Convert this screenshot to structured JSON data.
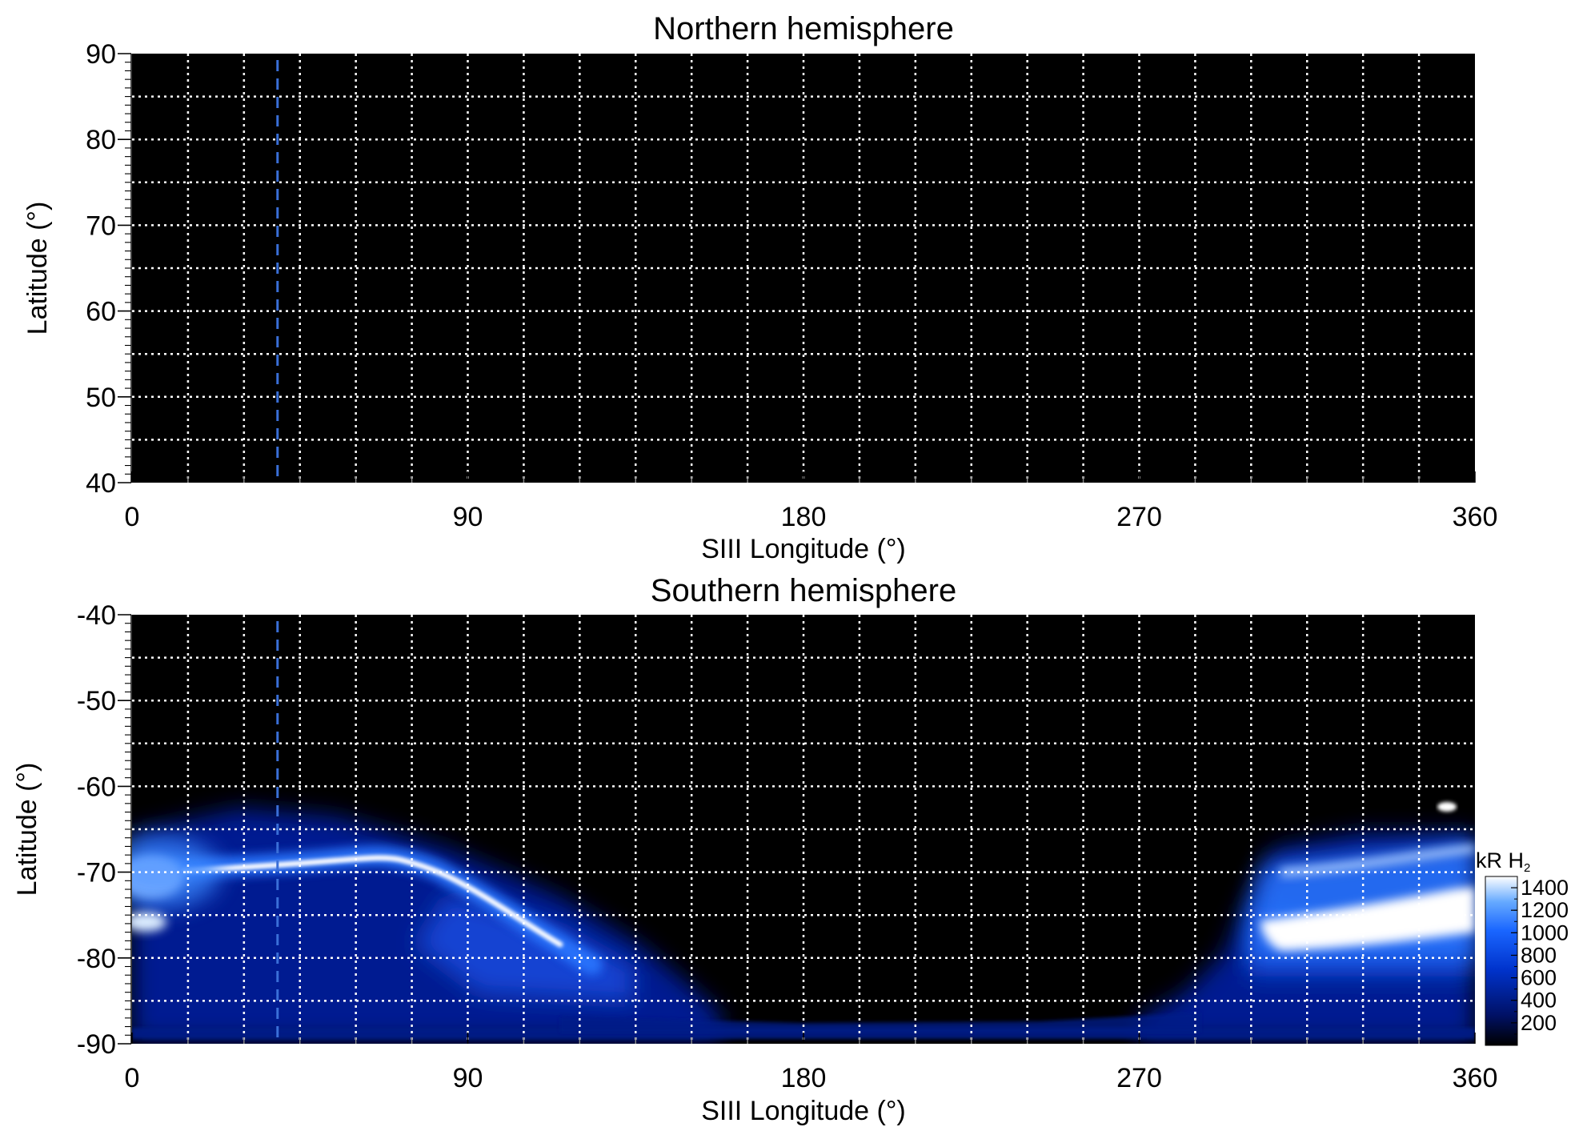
{
  "chart_data": [
    {
      "type": "heatmap",
      "title": "Northern hemisphere",
      "xlabel": "SIII Longitude (°)",
      "ylabel": "Latitude (°)",
      "xlim": [
        0,
        360
      ],
      "ylim": [
        40,
        90
      ],
      "xticks": [
        "0",
        "90",
        "180",
        "270",
        "360"
      ],
      "yticks": [
        "40",
        "50",
        "60",
        "70",
        "80",
        "90"
      ],
      "grid": true,
      "grid_color": "#ffffff",
      "background_color": "#000000",
      "reference_line": {
        "x": 39,
        "color": "#3a6fd8",
        "style": "dashed"
      },
      "emission": []
    },
    {
      "type": "heatmap",
      "title": "Southern hemisphere",
      "xlabel": "SIII Longitude (°)",
      "ylabel": "Latitude (°)",
      "xlim": [
        0,
        360
      ],
      "ylim": [
        -90,
        -40
      ],
      "xticks": [
        "0",
        "90",
        "180",
        "270",
        "360"
      ],
      "yticks": [
        "-90",
        "-80",
        "-70",
        "-60",
        "-50",
        "-40"
      ],
      "grid": true,
      "grid_color": "#ffffff",
      "background_color": "#000000",
      "reference_line": {
        "x": 39,
        "color": "#3a6fd8",
        "style": "dashed"
      },
      "colorbar": {
        "label_main": "kR H",
        "label_sub": "2",
        "range": [
          0,
          1500
        ],
        "ticks": [
          "200",
          "400",
          "600",
          "800",
          "1000",
          "1200",
          "1400"
        ],
        "colormap": [
          "#000000",
          "#001166",
          "#0033cc",
          "#1a66ff",
          "#66aaff",
          "#ffffff"
        ]
      },
      "emission": [
        {
          "region": "main-oval-arc",
          "lon": [
            0,
            30,
            60,
            75,
            90,
            105,
            112
          ],
          "lat": [
            -71,
            -69.5,
            -68,
            -69.5,
            -73,
            -77,
            -79
          ],
          "peak_kR": 1400
        },
        {
          "region": "left-bright-patch",
          "lon": [
            0,
            15
          ],
          "lat": [
            -72,
            -68
          ],
          "peak_kR": 1300
        },
        {
          "region": "lower-left-patch",
          "lon": [
            0,
            8
          ],
          "lat": [
            -77,
            -75
          ],
          "peak_kR": 1100
        },
        {
          "region": "right-bright-band",
          "lon": [
            302,
            360
          ],
          "lat": [
            -79,
            -72
          ],
          "peak_kR": 1500
        },
        {
          "region": "right-spot",
          "lon": [
            348,
            352
          ],
          "lat": [
            -63,
            -61
          ],
          "peak_kR": 1200
        },
        {
          "region": "diffuse-left",
          "lon": [
            0,
            150
          ],
          "lat": [
            -88,
            -65
          ],
          "peak_kR": 500
        },
        {
          "region": "diffuse-right",
          "lon": [
            280,
            360
          ],
          "lat": [
            -89,
            -65
          ],
          "peak_kR": 600
        },
        {
          "region": "polar-rim",
          "lon": [
            0,
            360
          ],
          "lat": [
            -90,
            -88.5
          ],
          "peak_kR": 350
        }
      ]
    }
  ]
}
